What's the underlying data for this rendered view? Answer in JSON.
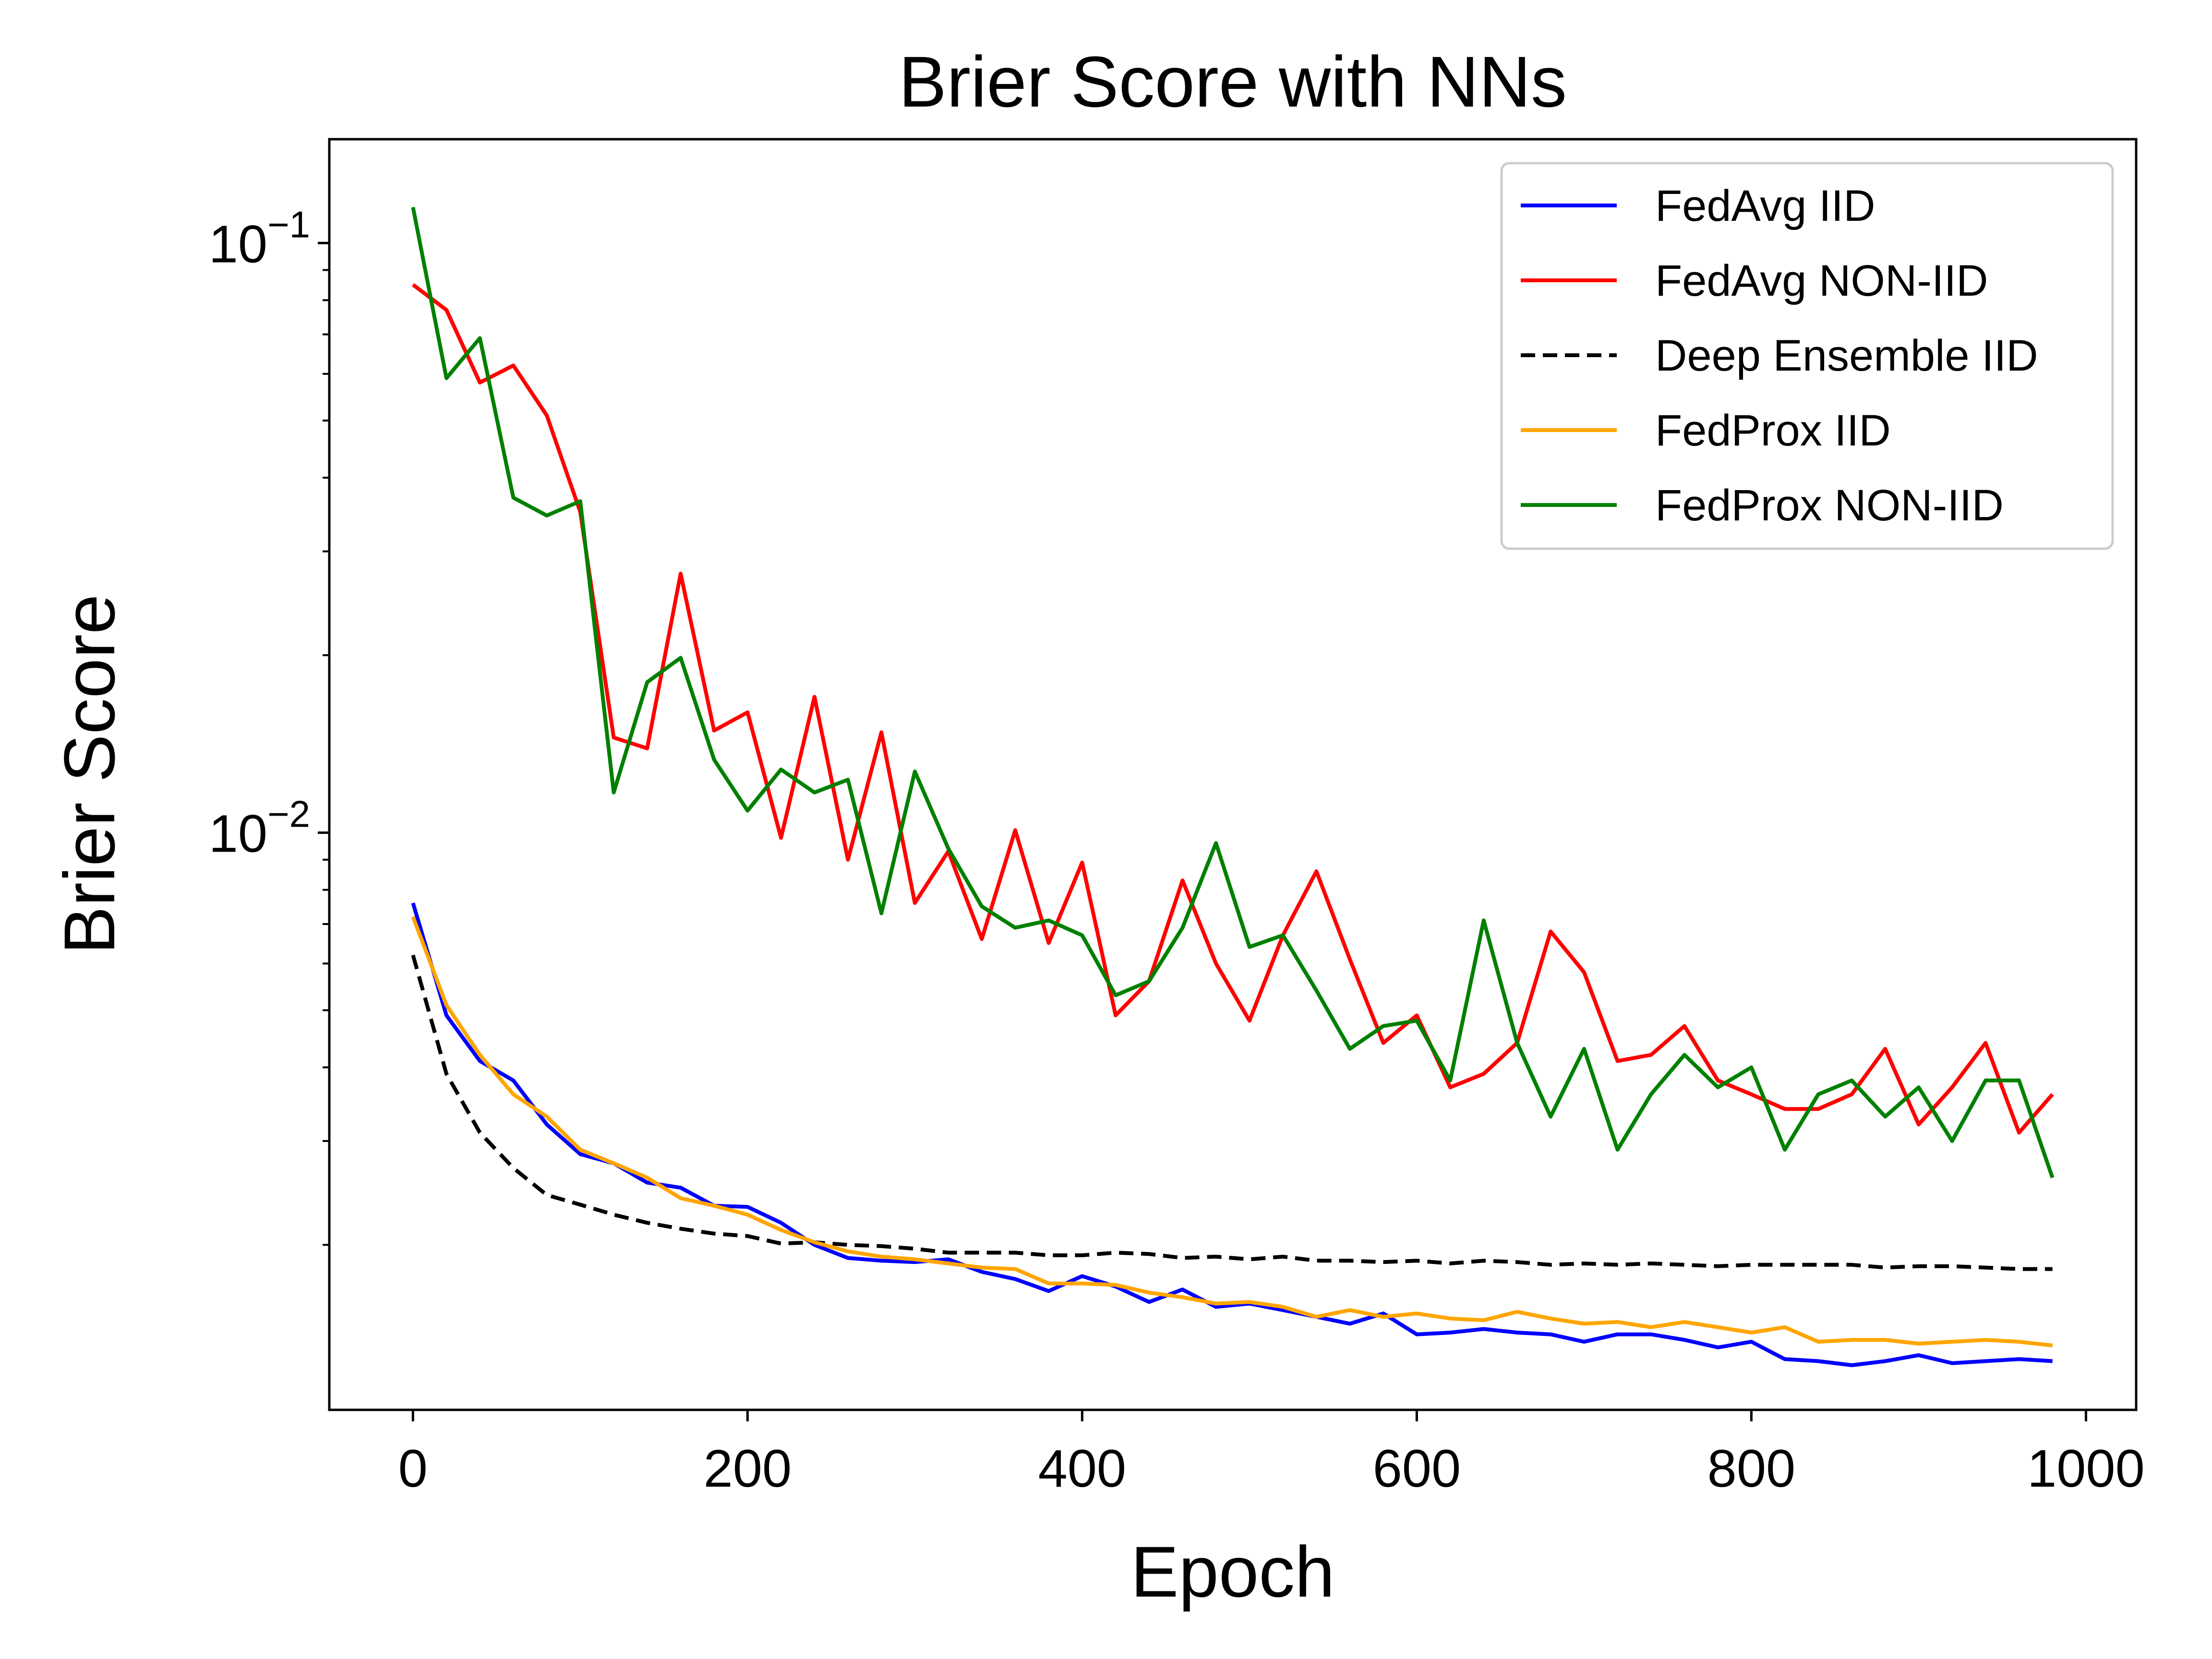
{
  "chart_data": {
    "type": "line",
    "title": "Brier Score with NNs",
    "xlabel": "Epoch",
    "ylabel": "Brier Score",
    "xlim": [
      -50,
      1030
    ],
    "ylim": [
      0.00105,
      0.15
    ],
    "yscale": "log",
    "grid": false,
    "legend_position": "top-right",
    "x_ticks": [
      0,
      200,
      400,
      600,
      800,
      1000
    ],
    "x_tick_labels": [
      "0",
      "200",
      "400",
      "600",
      "800",
      "1000"
    ],
    "y_ticks": [
      0.01,
      0.1
    ],
    "y_tick_labels": [
      {
        "base": "10",
        "exp": "−2"
      },
      {
        "base": "10",
        "exp": "−1"
      }
    ],
    "x": [
      0,
      20,
      40,
      60,
      80,
      100,
      120,
      140,
      160,
      180,
      200,
      220,
      240,
      260,
      280,
      300,
      320,
      340,
      360,
      380,
      400,
      420,
      440,
      460,
      480,
      500,
      520,
      540,
      560,
      580,
      600,
      620,
      640,
      660,
      680,
      700,
      720,
      740,
      760,
      780,
      800,
      820,
      840,
      860,
      880,
      900,
      920,
      940,
      960,
      980
    ],
    "series": [
      {
        "name": "FedAvg IID",
        "color": "#0000ff",
        "style": "solid",
        "values": [
          0.0076,
          0.0049,
          0.0041,
          0.0038,
          0.0032,
          0.00285,
          0.00275,
          0.00255,
          0.0025,
          0.00233,
          0.00232,
          0.00218,
          0.002,
          0.0019,
          0.00188,
          0.00187,
          0.00189,
          0.0018,
          0.00175,
          0.00167,
          0.00177,
          0.0017,
          0.0016,
          0.00168,
          0.00157,
          0.00159,
          0.00155,
          0.00151,
          0.00147,
          0.00153,
          0.00141,
          0.00142,
          0.00144,
          0.00142,
          0.00141,
          0.00137,
          0.00141,
          0.00141,
          0.00138,
          0.00134,
          0.00137,
          0.00128,
          0.00127,
          0.00125,
          0.00127,
          0.0013,
          0.00126,
          0.00127,
          0.00128,
          0.00127
        ]
      },
      {
        "name": "FedAvg NON-IID",
        "color": "#ff0000",
        "style": "solid",
        "values": [
          0.085,
          0.077,
          0.058,
          0.062,
          0.051,
          0.035,
          0.0145,
          0.0139,
          0.0275,
          0.0149,
          0.016,
          0.0098,
          0.017,
          0.009,
          0.0148,
          0.0076,
          0.0093,
          0.0066,
          0.0101,
          0.0065,
          0.0089,
          0.0049,
          0.0056,
          0.0083,
          0.006,
          0.0048,
          0.0067,
          0.0086,
          0.0061,
          0.0044,
          0.0049,
          0.0037,
          0.0039,
          0.0044,
          0.0068,
          0.0058,
          0.0041,
          0.0042,
          0.0047,
          0.0038,
          0.0036,
          0.0034,
          0.0034,
          0.0036,
          0.0043,
          0.0032,
          0.0037,
          0.0044,
          0.0031,
          0.0036
        ]
      },
      {
        "name": "Deep Ensemble IID",
        "color": "#000000",
        "style": "dashed",
        "values": [
          0.0062,
          0.0039,
          0.0031,
          0.0027,
          0.00243,
          0.00234,
          0.00225,
          0.00218,
          0.00213,
          0.00209,
          0.00207,
          0.00201,
          0.00202,
          0.002,
          0.00199,
          0.00197,
          0.00194,
          0.00194,
          0.00194,
          0.00192,
          0.00192,
          0.00194,
          0.00193,
          0.0019,
          0.00191,
          0.00189,
          0.00191,
          0.00188,
          0.00188,
          0.00187,
          0.00188,
          0.00186,
          0.00188,
          0.00187,
          0.00185,
          0.00186,
          0.00185,
          0.00186,
          0.00185,
          0.00184,
          0.00185,
          0.00185,
          0.00185,
          0.00185,
          0.00183,
          0.00184,
          0.00184,
          0.00183,
          0.00182,
          0.00182
        ]
      },
      {
        "name": "FedProx IID",
        "color": "#ffa500",
        "style": "solid",
        "values": [
          0.0072,
          0.0051,
          0.0042,
          0.0036,
          0.0033,
          0.0029,
          0.00275,
          0.0026,
          0.0024,
          0.00233,
          0.00225,
          0.00212,
          0.00202,
          0.00195,
          0.00191,
          0.00189,
          0.00186,
          0.00183,
          0.00182,
          0.00172,
          0.00172,
          0.00171,
          0.00166,
          0.00163,
          0.00159,
          0.0016,
          0.00157,
          0.00151,
          0.00155,
          0.00151,
          0.00153,
          0.0015,
          0.00149,
          0.00154,
          0.0015,
          0.00147,
          0.00148,
          0.00145,
          0.00148,
          0.00145,
          0.00142,
          0.00145,
          0.00137,
          0.00138,
          0.00138,
          0.00136,
          0.00137,
          0.00138,
          0.00137,
          0.00135
        ]
      },
      {
        "name": "FedProx NON-IID",
        "color": "#008000",
        "style": "solid",
        "values": [
          0.115,
          0.059,
          0.069,
          0.037,
          0.0345,
          0.0365,
          0.0117,
          0.018,
          0.0198,
          0.0133,
          0.0109,
          0.0128,
          0.0117,
          0.0123,
          0.0073,
          0.0127,
          0.0094,
          0.0075,
          0.0069,
          0.0071,
          0.0067,
          0.0053,
          0.0056,
          0.0069,
          0.0096,
          0.0064,
          0.0067,
          0.0054,
          0.0043,
          0.0047,
          0.0048,
          0.0038,
          0.0071,
          0.0044,
          0.0033,
          0.0043,
          0.0029,
          0.0036,
          0.0042,
          0.0037,
          0.004,
          0.0029,
          0.0036,
          0.0038,
          0.0033,
          0.0037,
          0.003,
          0.0038,
          0.0038,
          0.0026
        ]
      }
    ]
  }
}
